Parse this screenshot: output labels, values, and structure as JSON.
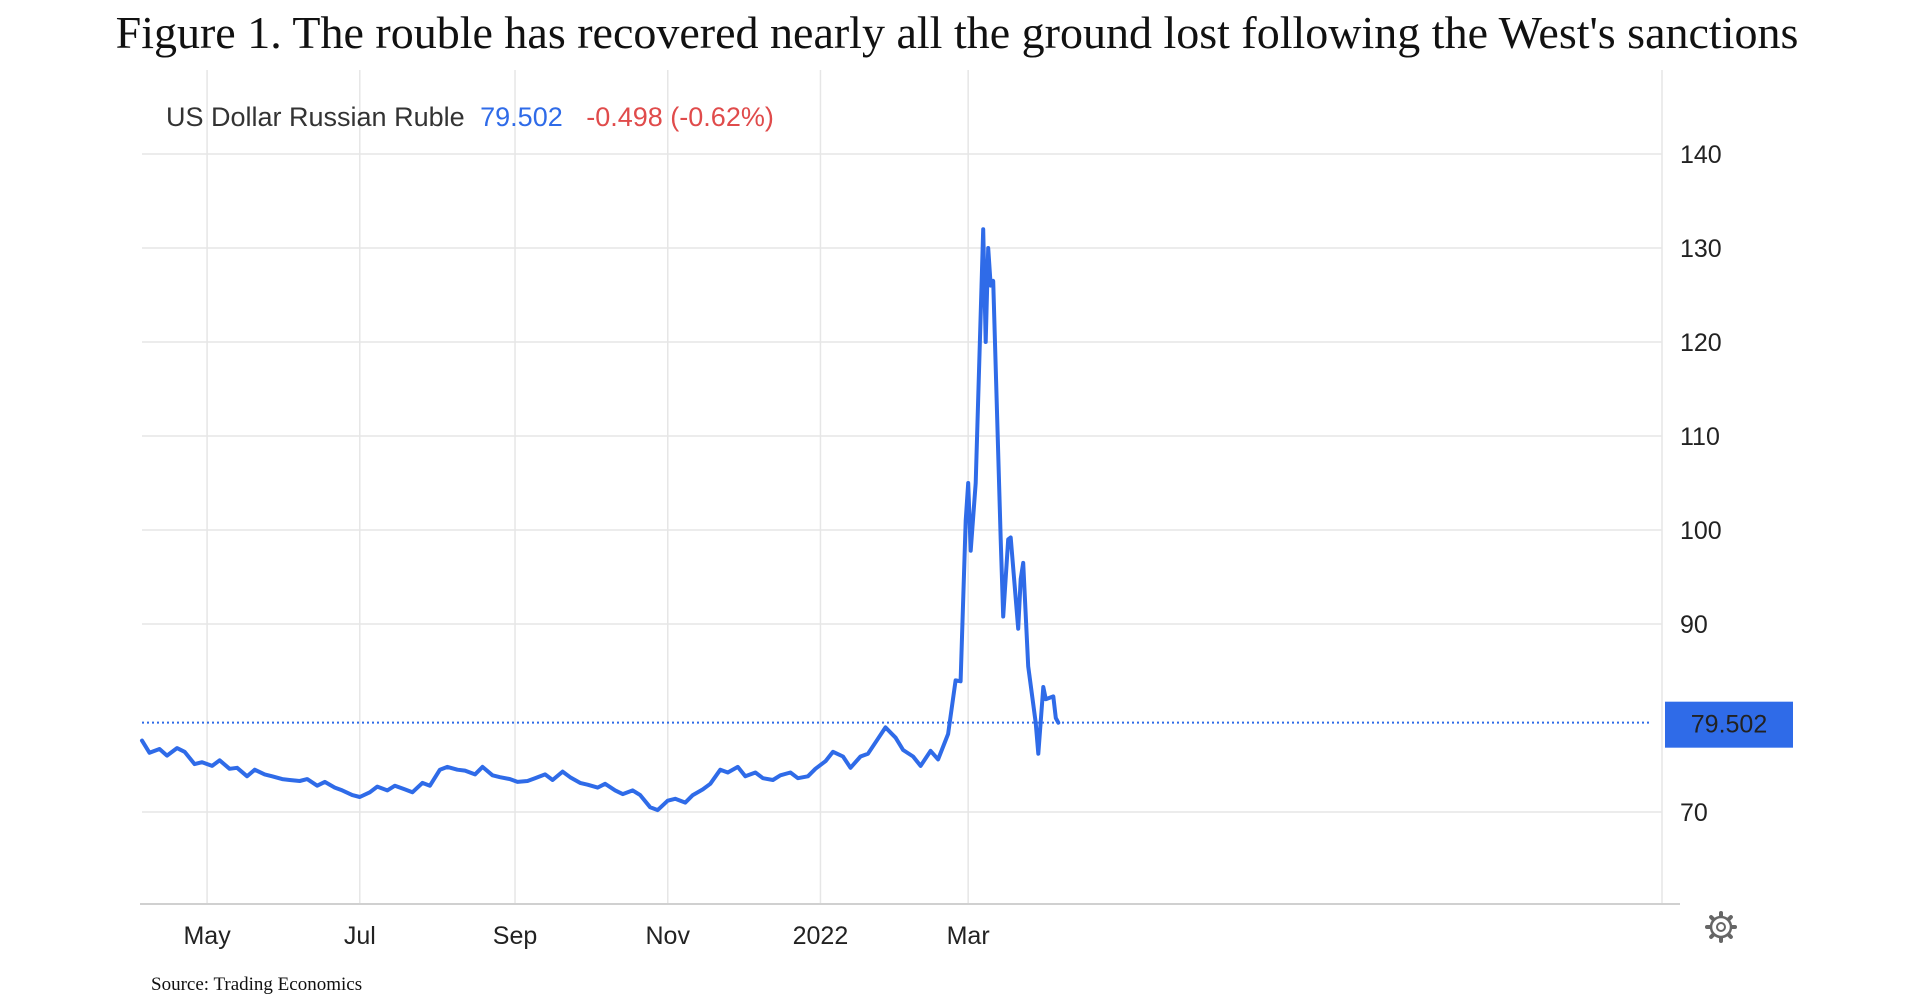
{
  "title": "Figure 1. The rouble has recovered nearly all the ground lost following the West's sanctions",
  "source": "Source: Trading Economics",
  "legend": {
    "series_name": "US Dollar Russian Ruble",
    "last_value": "79.502",
    "change": "-0.498 (-0.62%)"
  },
  "colors": {
    "line": "#2f6be8",
    "change": "#e04b4b",
    "grid": "#e6e6e6",
    "last_label_bg": "#2f6be8"
  },
  "icons": {
    "settings": "gear-icon"
  },
  "chart_data": {
    "type": "line",
    "title": "",
    "xlabel": "",
    "ylabel": "",
    "x_ticks": [
      "May",
      "Jul",
      "Sep",
      "Nov",
      "2022",
      "Mar"
    ],
    "y_ticks": [
      70,
      90,
      100,
      110,
      120,
      130,
      140
    ],
    "ylim": [
      60,
      145
    ],
    "x_range": [
      "2021-04-05",
      "2022-04-06"
    ],
    "grid": true,
    "legend_position": "top-left",
    "last_value_label": "79.502",
    "series": [
      {
        "values": [
          [
            "2021-04-05",
            77.6
          ],
          [
            "2021-04-08",
            76.3
          ],
          [
            "2021-04-12",
            76.7
          ],
          [
            "2021-04-15",
            76.0
          ],
          [
            "2021-04-19",
            76.8
          ],
          [
            "2021-04-22",
            76.4
          ],
          [
            "2021-04-26",
            75.1
          ],
          [
            "2021-04-29",
            75.3
          ],
          [
            "2021-05-03",
            74.9
          ],
          [
            "2021-05-06",
            75.5
          ],
          [
            "2021-05-10",
            74.6
          ],
          [
            "2021-05-13",
            74.7
          ],
          [
            "2021-05-17",
            73.8
          ],
          [
            "2021-05-20",
            74.5
          ],
          [
            "2021-05-24",
            74.0
          ],
          [
            "2021-05-27",
            73.8
          ],
          [
            "2021-05-31",
            73.5
          ],
          [
            "2021-06-03",
            73.4
          ],
          [
            "2021-06-07",
            73.3
          ],
          [
            "2021-06-10",
            73.5
          ],
          [
            "2021-06-14",
            72.8
          ],
          [
            "2021-06-17",
            73.2
          ],
          [
            "2021-06-21",
            72.6
          ],
          [
            "2021-06-24",
            72.3
          ],
          [
            "2021-06-28",
            71.8
          ],
          [
            "2021-07-01",
            71.6
          ],
          [
            "2021-07-05",
            72.1
          ],
          [
            "2021-07-08",
            72.7
          ],
          [
            "2021-07-12",
            72.3
          ],
          [
            "2021-07-15",
            72.8
          ],
          [
            "2021-07-19",
            72.4
          ],
          [
            "2021-07-22",
            72.1
          ],
          [
            "2021-07-26",
            73.1
          ],
          [
            "2021-07-29",
            72.8
          ],
          [
            "2021-08-02",
            74.5
          ],
          [
            "2021-08-05",
            74.8
          ],
          [
            "2021-08-09",
            74.5
          ],
          [
            "2021-08-12",
            74.4
          ],
          [
            "2021-08-16",
            74.0
          ],
          [
            "2021-08-19",
            74.8
          ],
          [
            "2021-08-23",
            73.9
          ],
          [
            "2021-08-26",
            73.7
          ],
          [
            "2021-08-30",
            73.5
          ],
          [
            "2021-09-02",
            73.2
          ],
          [
            "2021-09-06",
            73.3
          ],
          [
            "2021-09-09",
            73.6
          ],
          [
            "2021-09-13",
            74.0
          ],
          [
            "2021-09-16",
            73.4
          ],
          [
            "2021-09-20",
            74.3
          ],
          [
            "2021-09-23",
            73.7
          ],
          [
            "2021-09-27",
            73.1
          ],
          [
            "2021-09-30",
            72.9
          ],
          [
            "2021-10-04",
            72.6
          ],
          [
            "2021-10-07",
            73.0
          ],
          [
            "2021-10-11",
            72.3
          ],
          [
            "2021-10-14",
            71.9
          ],
          [
            "2021-10-18",
            72.3
          ],
          [
            "2021-10-21",
            71.8
          ],
          [
            "2021-10-25",
            70.5
          ],
          [
            "2021-10-28",
            70.2
          ],
          [
            "2021-11-01",
            71.2
          ],
          [
            "2021-11-04",
            71.4
          ],
          [
            "2021-11-08",
            71.0
          ],
          [
            "2021-11-11",
            71.8
          ],
          [
            "2021-11-15",
            72.4
          ],
          [
            "2021-11-18",
            73.0
          ],
          [
            "2021-11-22",
            74.5
          ],
          [
            "2021-11-25",
            74.2
          ],
          [
            "2021-11-29",
            74.8
          ],
          [
            "2021-12-02",
            73.8
          ],
          [
            "2021-12-06",
            74.2
          ],
          [
            "2021-12-09",
            73.6
          ],
          [
            "2021-12-13",
            73.4
          ],
          [
            "2021-12-16",
            73.9
          ],
          [
            "2021-12-20",
            74.2
          ],
          [
            "2021-12-23",
            73.6
          ],
          [
            "2021-12-27",
            73.8
          ],
          [
            "2021-12-30",
            74.6
          ],
          [
            "2022-01-03",
            75.4
          ],
          [
            "2022-01-06",
            76.4
          ],
          [
            "2022-01-10",
            75.9
          ],
          [
            "2022-01-13",
            74.7
          ],
          [
            "2022-01-17",
            75.9
          ],
          [
            "2022-01-20",
            76.2
          ],
          [
            "2022-01-24",
            77.8
          ],
          [
            "2022-01-27",
            79.0
          ],
          [
            "2022-01-31",
            77.9
          ],
          [
            "2022-02-03",
            76.6
          ],
          [
            "2022-02-07",
            75.9
          ],
          [
            "2022-02-10",
            74.9
          ],
          [
            "2022-02-14",
            76.5
          ],
          [
            "2022-02-17",
            75.6
          ],
          [
            "2022-02-21",
            78.3
          ],
          [
            "2022-02-24",
            84.0
          ],
          [
            "2022-02-26",
            83.9
          ],
          [
            "2022-02-28",
            101.0
          ],
          [
            "2022-03-01",
            105.0
          ],
          [
            "2022-03-02",
            97.8
          ],
          [
            "2022-03-04",
            105.0
          ],
          [
            "2022-03-07",
            132.0
          ],
          [
            "2022-03-08",
            120.0
          ],
          [
            "2022-03-09",
            130.0
          ],
          [
            "2022-03-10",
            126.0
          ],
          [
            "2022-03-11",
            126.5
          ],
          [
            "2022-03-14",
            99.0
          ],
          [
            "2022-03-15",
            90.8
          ],
          [
            "2022-03-17",
            99.0
          ],
          [
            "2022-03-18",
            99.2
          ],
          [
            "2022-03-21",
            89.5
          ],
          [
            "2022-03-22",
            94.8
          ],
          [
            "2022-03-23",
            96.5
          ],
          [
            "2022-03-25",
            85.5
          ],
          [
            "2022-03-28",
            79.5
          ],
          [
            "2022-03-29",
            76.2
          ],
          [
            "2022-03-31",
            83.3
          ],
          [
            "2022-04-01",
            82.0
          ],
          [
            "2022-04-04",
            82.3
          ],
          [
            "2022-04-05",
            80.0
          ],
          [
            "2022-04-06",
            79.502
          ]
        ]
      }
    ]
  }
}
